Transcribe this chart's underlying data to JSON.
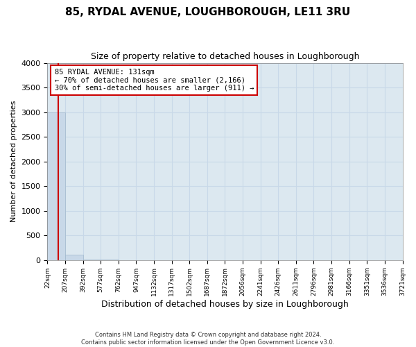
{
  "title": "85, RYDAL AVENUE, LOUGHBOROUGH, LE11 3RU",
  "subtitle": "Size of property relative to detached houses in Loughborough",
  "xlabel": "Distribution of detached houses by size in Loughborough",
  "ylabel": "Number of detached properties",
  "footer_line1": "Contains HM Land Registry data © Crown copyright and database right 2024.",
  "footer_line2": "Contains public sector information licensed under the Open Government Licence v3.0.",
  "tick_labels": [
    "22sqm",
    "207sqm",
    "392sqm",
    "577sqm",
    "762sqm",
    "947sqm",
    "1132sqm",
    "1317sqm",
    "1502sqm",
    "1687sqm",
    "1872sqm",
    "2056sqm",
    "2241sqm",
    "2426sqm",
    "2611sqm",
    "2796sqm",
    "2981sqm",
    "3166sqm",
    "3351sqm",
    "3536sqm",
    "3721sqm"
  ],
  "bar_heights": [
    3000,
    110,
    5,
    2,
    1,
    1,
    0,
    0,
    0,
    0,
    0,
    0,
    0,
    0,
    0,
    0,
    0,
    0,
    0,
    0
  ],
  "bar_color": "#c8d8e8",
  "bar_edge_color": "#a0b8cc",
  "grid_color": "#c8d8e8",
  "background_color": "#dce8f0",
  "annotation_text": "85 RYDAL AVENUE: 131sqm\n← 70% of detached houses are smaller (2,166)\n30% of semi-detached houses are larger (911) →",
  "annotation_box_color": "#ffffff",
  "annotation_border_color": "#cc0000",
  "vline_color": "#cc0000",
  "vline_x": 0.595,
  "ylim": [
    0,
    4000
  ],
  "yticks": [
    0,
    500,
    1000,
    1500,
    2000,
    2500,
    3000,
    3500,
    4000
  ]
}
